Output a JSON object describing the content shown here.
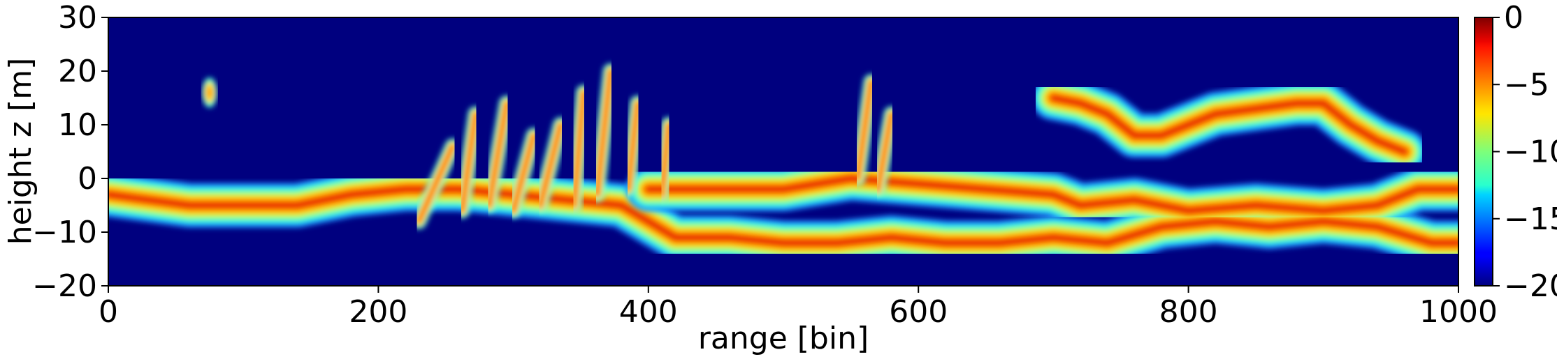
{
  "chart_data": {
    "type": "heatmap",
    "xlabel": "range [bin]",
    "ylabel": "height z [m]",
    "xlim": [
      0,
      1000
    ],
    "ylim": [
      -20,
      30
    ],
    "x_ticks": [
      0,
      200,
      400,
      600,
      800,
      1000
    ],
    "x_tick_labels": [
      "0",
      "200",
      "400",
      "600",
      "800",
      "1000"
    ],
    "y_ticks": [
      -20,
      -10,
      0,
      10,
      20,
      30
    ],
    "y_tick_labels": [
      "−20",
      "−10",
      "0",
      "10",
      "20",
      "30"
    ],
    "colormap": "jet",
    "background_color": "#00007f",
    "colorbar": {
      "range": [
        -20,
        0
      ],
      "ticks": [
        0,
        -5,
        -10,
        -15,
        -20
      ],
      "tick_labels": [
        "0",
        "−5",
        "−10",
        "−15",
        "−20"
      ]
    },
    "layers": [
      {
        "name": "lower",
        "points": [
          [
            0,
            -3
          ],
          [
            30,
            -4
          ],
          [
            60,
            -5
          ],
          [
            100,
            -5
          ],
          [
            140,
            -5
          ],
          [
            180,
            -3
          ],
          [
            220,
            -2
          ],
          [
            260,
            -2
          ],
          [
            300,
            -3
          ],
          [
            340,
            -4
          ],
          [
            380,
            -5
          ],
          [
            420,
            -11
          ],
          [
            460,
            -11
          ],
          [
            500,
            -12
          ],
          [
            540,
            -12
          ],
          [
            580,
            -11
          ],
          [
            620,
            -12
          ],
          [
            660,
            -12
          ],
          [
            700,
            -11
          ],
          [
            740,
            -12
          ],
          [
            780,
            -9
          ],
          [
            820,
            -8
          ],
          [
            860,
            -9
          ],
          [
            900,
            -8
          ],
          [
            940,
            -9
          ],
          [
            980,
            -12
          ],
          [
            1000,
            -12
          ]
        ]
      },
      {
        "name": "middle",
        "points": [
          [
            400,
            -2
          ],
          [
            450,
            -2
          ],
          [
            500,
            -2
          ],
          [
            550,
            0
          ],
          [
            600,
            -1
          ],
          [
            650,
            -2
          ],
          [
            700,
            -3
          ],
          [
            720,
            -5
          ],
          [
            760,
            -4
          ],
          [
            800,
            -6
          ],
          [
            850,
            -5
          ],
          [
            900,
            -6
          ],
          [
            940,
            -5
          ],
          [
            970,
            -2
          ],
          [
            1000,
            -2
          ]
        ]
      },
      {
        "name": "upper",
        "points": [
          [
            700,
            15
          ],
          [
            720,
            14
          ],
          [
            740,
            12
          ],
          [
            760,
            8
          ],
          [
            780,
            8
          ],
          [
            800,
            10
          ],
          [
            820,
            12
          ],
          [
            850,
            13
          ],
          [
            880,
            14
          ],
          [
            900,
            14
          ],
          [
            920,
            10
          ],
          [
            940,
            7
          ],
          [
            960,
            5
          ]
        ]
      }
    ],
    "streaks": [
      [
        230,
        -8,
        255,
        6
      ],
      [
        262,
        -6,
        272,
        12
      ],
      [
        282,
        -5,
        295,
        14
      ],
      [
        300,
        -6,
        315,
        8
      ],
      [
        320,
        -5,
        335,
        10
      ],
      [
        345,
        -5,
        352,
        16
      ],
      [
        362,
        -3,
        372,
        20
      ],
      [
        385,
        -2,
        392,
        14
      ],
      [
        410,
        -3,
        415,
        10
      ],
      [
        555,
        0,
        565,
        18
      ],
      [
        570,
        -2,
        580,
        12
      ]
    ],
    "patches": [
      [
        75,
        16,
        4,
        2
      ]
    ]
  }
}
